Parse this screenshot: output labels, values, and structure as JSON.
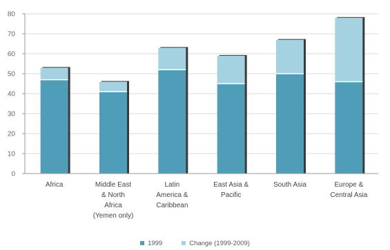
{
  "chart_data": {
    "type": "bar",
    "stacked": true,
    "categories": [
      [
        "Africa"
      ],
      [
        "Middle East",
        "& North",
        "Africa",
        "(Yemen only)"
      ],
      [
        "Latin",
        "America &",
        "Caribbean"
      ],
      [
        "East Asia &",
        "Pacific"
      ],
      [
        "South Asia"
      ],
      [
        "Europe &",
        "Central Asia"
      ]
    ],
    "series": [
      {
        "name": "1999",
        "values": [
          47,
          41,
          52,
          45,
          50,
          46
        ],
        "color": "#4f9db8"
      },
      {
        "name": "Change (1999-2009)",
        "values": [
          6,
          5,
          11,
          14,
          17,
          32
        ],
        "color": "#a5d2e1"
      }
    ],
    "yticks": [
      "0",
      "10",
      "20",
      "30",
      "40",
      "50",
      "60",
      "70",
      "80"
    ],
    "ylim": [
      0,
      80
    ],
    "grid": true,
    "legend_position": "bottom"
  }
}
